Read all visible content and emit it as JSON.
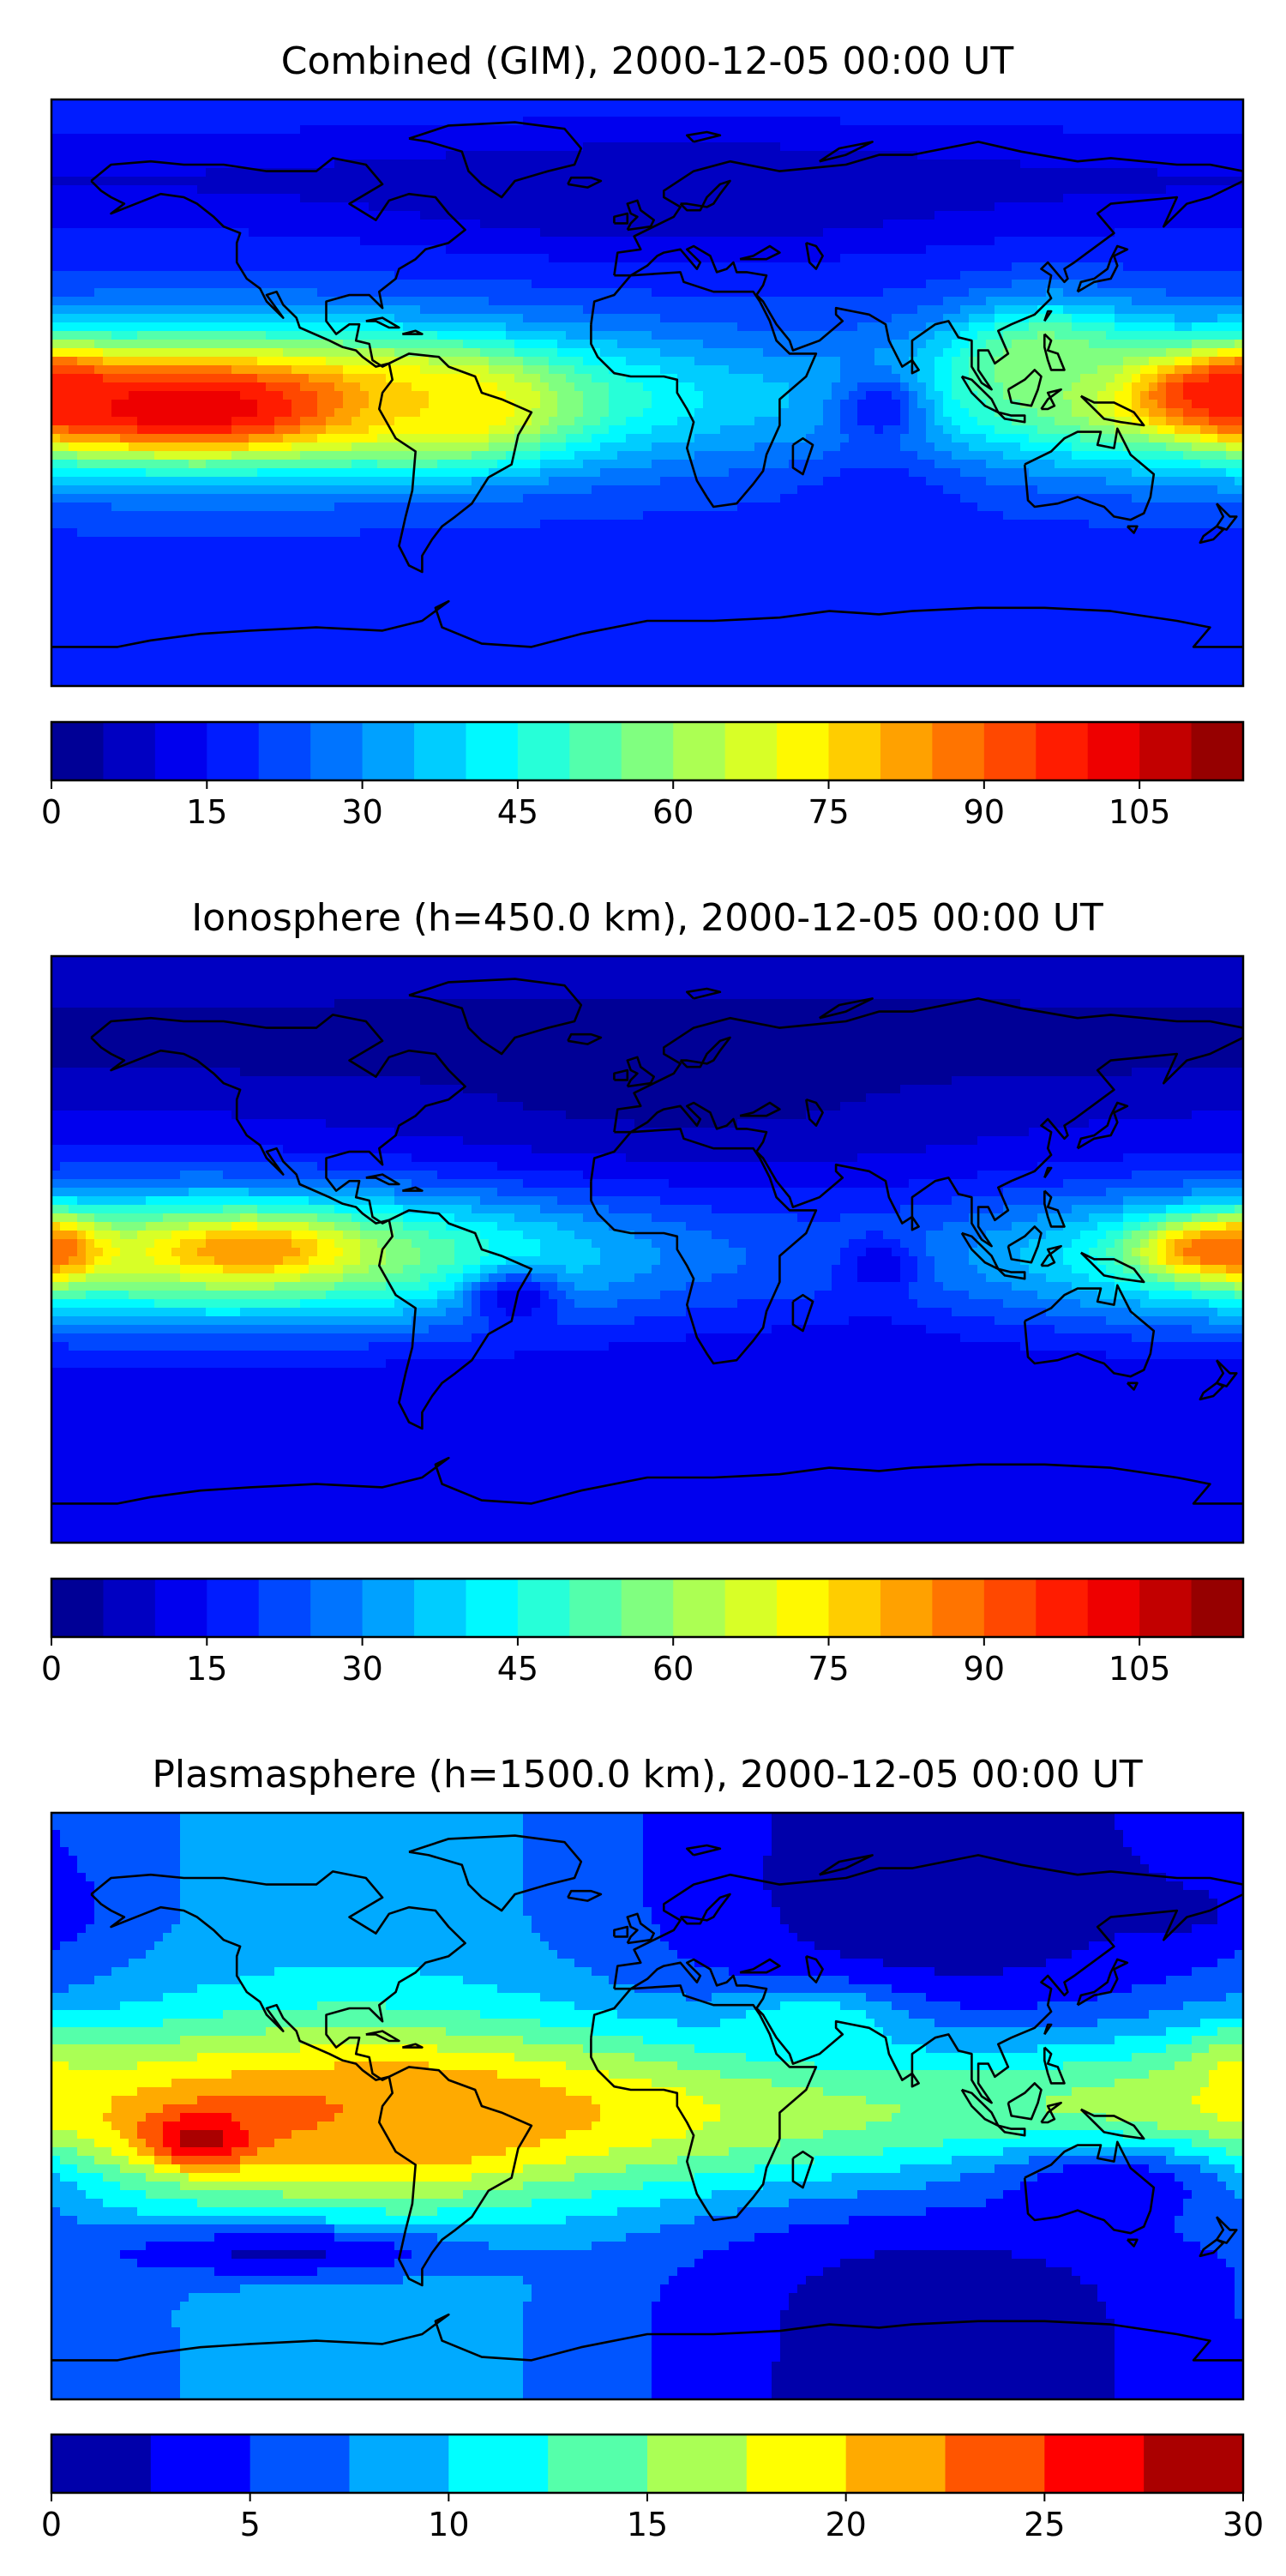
{
  "chart_data": [
    {
      "type": "heatmap",
      "title": "Combined (GIM), 2000-12-05 00:00 UT",
      "colorbar": {
        "range": [
          0,
          115
        ],
        "step": 5,
        "ticks": [
          0,
          15,
          30,
          45,
          60,
          75,
          90,
          105
        ],
        "tick_labels": [
          "0",
          "15",
          "30",
          "45",
          "60",
          "75",
          "90",
          "105"
        ]
      },
      "blobs": [
        {
          "lon": -140,
          "lat": -5,
          "value": 105,
          "extent_lon": 30,
          "extent_lat": 8
        },
        {
          "lon": -178,
          "lat": 0,
          "value": 100,
          "extent_lon": 10,
          "extent_lat": 7
        },
        {
          "lon": 170,
          "lat": 0,
          "value": 100,
          "extent_lon": 20,
          "extent_lat": 7
        },
        {
          "lon": -60,
          "lat": -5,
          "value": 75,
          "extent_lon": 20,
          "extent_lat": 10
        },
        {
          "lon": 120,
          "lat": 10,
          "value": 60,
          "extent_lon": 20,
          "extent_lat": 12
        },
        {
          "lon": 70,
          "lat": -5,
          "value": 15,
          "extent_lon": 10,
          "extent_lat": 8
        },
        {
          "lon": 70,
          "lat": -35,
          "value": 15,
          "extent_lon": 15,
          "extent_lat": 10
        },
        {
          "lon": 10,
          "lat": 60,
          "value": 5,
          "extent_lon": 60,
          "extent_lat": 12
        }
      ]
    },
    {
      "type": "heatmap",
      "title": "Ionosphere  (h=450.0 km), 2000-12-05 00:00 UT",
      "colorbar": {
        "range": [
          0,
          115
        ],
        "step": 5,
        "ticks": [
          0,
          15,
          30,
          45,
          60,
          75,
          90,
          105
        ],
        "tick_labels": [
          "0",
          "15",
          "30",
          "45",
          "60",
          "75",
          "90",
          "105"
        ]
      },
      "blobs": [
        {
          "lon": -120,
          "lat": 0,
          "value": 85,
          "extent_lon": 20,
          "extent_lat": 6
        },
        {
          "lon": -178,
          "lat": 0,
          "value": 85,
          "extent_lon": 8,
          "extent_lat": 6
        },
        {
          "lon": 170,
          "lat": 0,
          "value": 90,
          "extent_lon": 15,
          "extent_lat": 6
        },
        {
          "lon": -40,
          "lat": -15,
          "value": 10,
          "extent_lon": 10,
          "extent_lat": 6
        },
        {
          "lon": 70,
          "lat": -5,
          "value": 10,
          "extent_lon": 8,
          "extent_lat": 6
        },
        {
          "lon": 70,
          "lat": -35,
          "value": 10,
          "extent_lon": 12,
          "extent_lat": 8
        },
        {
          "lon": 10,
          "lat": 50,
          "value": 3,
          "extent_lon": 60,
          "extent_lat": 15
        }
      ]
    },
    {
      "type": "heatmap",
      "title": "Plasmasphere (h=1500.0 km), 2000-12-05 00:00 UT",
      "colorbar": {
        "range": [
          0,
          30
        ],
        "step": 2.5,
        "ticks": [
          0,
          5,
          10,
          15,
          20,
          25,
          30
        ],
        "tick_labels": [
          "0",
          "5",
          "10",
          "15",
          "20",
          "25",
          "30"
        ]
      },
      "blobs": [
        {
          "lon": -135,
          "lat": -10,
          "value": 29,
          "extent_lon": 12,
          "extent_lat": 6
        },
        {
          "lon": -70,
          "lat": -5,
          "value": 22,
          "extent_lon": 20,
          "extent_lat": 10
        },
        {
          "lon": 178,
          "lat": 10,
          "value": 18,
          "extent_lon": 10,
          "extent_lat": 8
        },
        {
          "lon": 50,
          "lat": 25,
          "value": 12,
          "extent_lon": 20,
          "extent_lat": 8
        },
        {
          "lon": 100,
          "lat": 70,
          "value": 2,
          "extent_lon": 40,
          "extent_lat": 8
        },
        {
          "lon": 160,
          "lat": 60,
          "value": 2,
          "extent_lon": 20,
          "extent_lat": 8
        },
        {
          "lon": -110,
          "lat": -45,
          "value": 2,
          "extent_lon": 40,
          "extent_lat": 6
        },
        {
          "lon": 140,
          "lat": -25,
          "value": 3,
          "extent_lon": 30,
          "extent_lat": 10
        }
      ]
    }
  ]
}
